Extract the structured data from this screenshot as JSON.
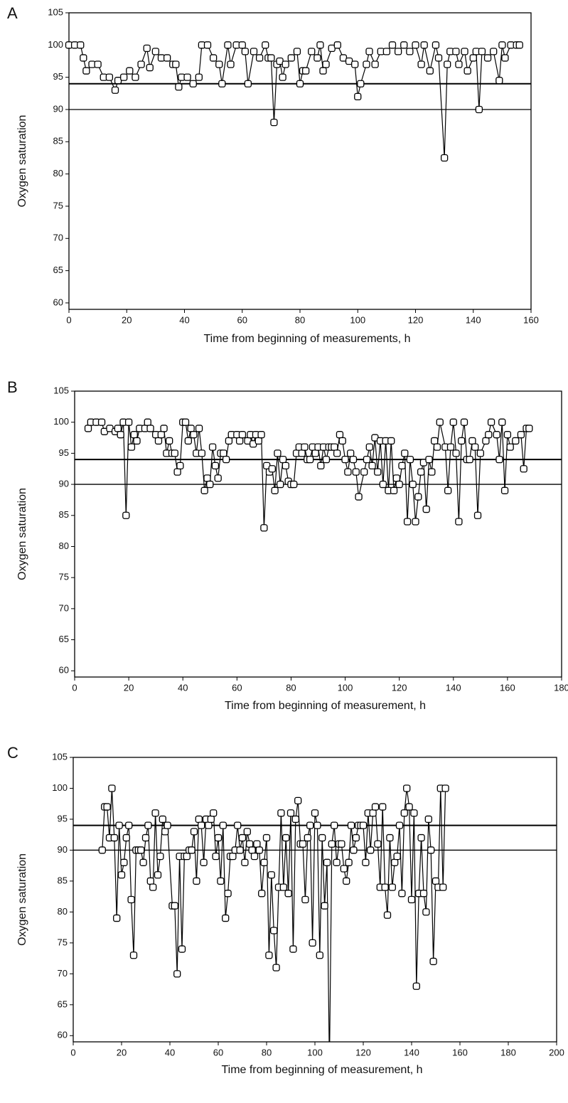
{
  "chart_data": [
    {
      "type": "line",
      "panel_label": "A",
      "xlabel": "Time from beginning of measurements, h",
      "ylabel": "Oxygen saturation",
      "xlim": [
        0,
        160
      ],
      "ylim": [
        59,
        105
      ],
      "xticks": [
        0,
        20,
        40,
        60,
        80,
        100,
        120,
        140,
        160
      ],
      "yticks": [
        60,
        65,
        70,
        75,
        80,
        85,
        90,
        95,
        100,
        105
      ],
      "reference_lines": [
        94,
        90
      ],
      "color": "#000000",
      "x": [
        0,
        2,
        4,
        5,
        6,
        8,
        10,
        12,
        14,
        16,
        17,
        19,
        21,
        23,
        25,
        27,
        28,
        30,
        32,
        34,
        36,
        37,
        38,
        39,
        41,
        43,
        45,
        46,
        48,
        50,
        52,
        53,
        55,
        56,
        58,
        60,
        61,
        62,
        64,
        66,
        68,
        69,
        70,
        71,
        72,
        73,
        74,
        75,
        77,
        79,
        80,
        81,
        82,
        84,
        86,
        87,
        88,
        89,
        91,
        93,
        95,
        97,
        99,
        100,
        101,
        103,
        104,
        106,
        108,
        110,
        112,
        114,
        116,
        118,
        120,
        122,
        123,
        125,
        127,
        128,
        130,
        131,
        132,
        134,
        135,
        137,
        138,
        140,
        141,
        142,
        143,
        145,
        147,
        149,
        150,
        151,
        153,
        155,
        156
      ],
      "values": [
        100,
        100,
        100,
        98,
        96,
        97,
        97,
        95,
        95,
        93,
        94.5,
        95,
        96,
        95,
        97,
        99.5,
        96.5,
        99,
        98,
        98,
        97,
        97,
        93.5,
        95,
        95,
        94,
        95,
        100,
        100,
        98,
        97,
        94,
        100,
        97,
        100,
        100,
        99,
        94,
        99,
        98,
        100,
        98,
        98,
        88,
        97,
        97.5,
        95,
        97,
        98,
        99,
        94,
        96,
        96,
        99,
        98,
        100,
        96,
        97,
        99.5,
        100,
        98,
        97.5,
        97,
        92,
        94,
        97,
        99,
        97,
        99,
        99,
        100,
        99,
        100,
        99,
        100,
        97,
        100,
        96,
        100,
        98,
        82.5,
        97,
        99,
        99,
        97,
        99,
        96,
        98,
        99,
        90,
        99,
        98,
        99,
        94.5,
        100,
        98,
        100,
        100,
        100
      ]
    },
    {
      "type": "line",
      "panel_label": "B",
      "xlabel": "Time from beginning of measurement, h",
      "ylabel": "Oxygen saturation",
      "xlim": [
        0,
        180
      ],
      "ylim": [
        59,
        105
      ],
      "xticks": [
        0,
        20,
        40,
        60,
        80,
        100,
        120,
        140,
        160,
        180
      ],
      "yticks": [
        60,
        65,
        70,
        75,
        80,
        85,
        90,
        95,
        100,
        105
      ],
      "reference_lines": [
        94,
        90
      ],
      "color": "#000000",
      "x": [
        5,
        6,
        8,
        10,
        11,
        13,
        15,
        16,
        17,
        18,
        19,
        20,
        21,
        22,
        23,
        24,
        26,
        27,
        28,
        30,
        31,
        32,
        33,
        34,
        35,
        36,
        37,
        38,
        39,
        40,
        41,
        42,
        43,
        44,
        45,
        46,
        47,
        48,
        49,
        50,
        51,
        52,
        53,
        54,
        55,
        56,
        57,
        58,
        60,
        61,
        62,
        64,
        65,
        66,
        67,
        68,
        69,
        70,
        71,
        72,
        73,
        74,
        75,
        76,
        77,
        78,
        79,
        80,
        81,
        82,
        83,
        84,
        85,
        86,
        87,
        88,
        89,
        90,
        91,
        92,
        93,
        94,
        95,
        96,
        97,
        98,
        99,
        100,
        101,
        102,
        103,
        104,
        105,
        107,
        108,
        109,
        110,
        111,
        112,
        113,
        114,
        115,
        116,
        117,
        118,
        119,
        120,
        121,
        122,
        123,
        124,
        125,
        126,
        127,
        128,
        129,
        130,
        131,
        132,
        133,
        134,
        135,
        137,
        138,
        139,
        140,
        141,
        142,
        143,
        144,
        145,
        146,
        147,
        148,
        149,
        150,
        152,
        153,
        154,
        156,
        157,
        158,
        159,
        160,
        161,
        163,
        165,
        166,
        167,
        168
      ],
      "values": [
        99,
        100,
        100,
        100,
        98.5,
        99,
        98.5,
        99,
        98,
        100,
        85,
        100,
        96,
        98,
        97,
        99,
        99,
        100,
        99,
        98,
        97,
        98,
        99,
        95,
        97,
        95,
        95,
        92,
        93,
        100,
        100,
        97,
        99,
        98,
        95,
        99,
        95,
        89,
        91,
        90,
        96,
        93,
        91,
        95,
        95,
        94,
        97,
        98,
        98,
        97,
        98,
        97,
        98,
        96.5,
        98,
        97,
        98,
        83,
        93,
        92,
        92.5,
        89,
        95,
        90,
        94,
        93,
        90.5,
        90,
        90,
        95,
        96,
        95,
        96,
        94,
        94,
        96,
        95,
        96,
        93,
        96,
        94,
        96,
        96,
        96,
        95,
        98,
        97,
        94,
        92,
        95,
        94,
        92,
        88,
        92,
        94,
        96,
        93,
        97.5,
        92,
        97,
        90,
        97,
        89,
        97,
        89,
        91,
        90,
        93,
        95,
        84,
        94,
        90,
        84,
        88,
        92,
        93.5,
        86,
        94,
        92,
        97,
        96,
        100,
        96,
        89,
        96,
        100,
        95,
        84,
        97,
        100,
        94,
        94,
        97,
        96,
        85,
        95,
        97,
        98,
        100,
        98,
        94,
        100,
        89,
        98,
        96,
        97,
        98,
        92.5,
        99,
        99
      ]
    },
    {
      "type": "line",
      "panel_label": "C",
      "xlabel": "Time from beginning of measurement, h",
      "ylabel": "Oxygen saturation",
      "xlim": [
        0,
        200
      ],
      "ylim": [
        59,
        105
      ],
      "xticks": [
        0,
        20,
        40,
        60,
        80,
        100,
        120,
        140,
        160,
        180,
        200
      ],
      "yticks": [
        60,
        65,
        70,
        75,
        80,
        85,
        90,
        95,
        100,
        105
      ],
      "reference_lines": [
        94,
        90
      ],
      "color": "#000000",
      "x": [
        12,
        13,
        14,
        15,
        16,
        17,
        18,
        19,
        20,
        21,
        22,
        23,
        24,
        25,
        26,
        27,
        28,
        29,
        30,
        31,
        32,
        33,
        34,
        35,
        36,
        37,
        38,
        39,
        41,
        42,
        43,
        44,
        45,
        46,
        47,
        48,
        49,
        50,
        51,
        52,
        53,
        54,
        55,
        56,
        57,
        58,
        59,
        60,
        61,
        62,
        63,
        64,
        65,
        66,
        67,
        68,
        69,
        70,
        71,
        72,
        73,
        74,
        75,
        76,
        77,
        78,
        79,
        80,
        81,
        82,
        83,
        84,
        85,
        86,
        87,
        88,
        89,
        90,
        91,
        92,
        93,
        94,
        95,
        96,
        97,
        98,
        99,
        100,
        101,
        102,
        103,
        104,
        105,
        106,
        107,
        108,
        109,
        110,
        111,
        112,
        113,
        114,
        115,
        116,
        117,
        118,
        119,
        120,
        121,
        122,
        123,
        124,
        125,
        126,
        127,
        128,
        129,
        130,
        131,
        132,
        133,
        134,
        135,
        136,
        137,
        138,
        139,
        140,
        141,
        142,
        143,
        144,
        145,
        146,
        147,
        148,
        149,
        150,
        151,
        152,
        153,
        154
      ],
      "values": [
        90,
        97,
        97,
        92,
        100,
        92,
        79,
        94,
        86,
        88,
        92,
        94,
        82,
        73,
        90,
        90,
        90,
        88,
        92,
        94,
        85,
        84,
        96,
        86,
        89,
        95,
        93,
        94,
        81,
        81,
        70,
        89,
        74,
        89,
        89,
        90,
        90,
        93,
        85,
        95,
        94,
        88,
        95,
        94,
        95,
        96,
        89,
        92,
        85,
        94,
        79,
        83,
        89,
        89,
        90,
        94,
        90,
        92,
        88,
        93,
        91,
        90,
        89,
        91,
        90,
        83,
        88,
        92,
        73,
        86,
        77,
        71,
        84,
        96,
        84,
        92,
        83,
        96,
        74,
        95,
        98,
        91,
        91,
        82,
        92,
        94,
        75,
        96,
        94,
        73,
        92,
        81,
        88,
        55,
        91,
        94,
        88,
        91,
        91,
        87,
        85,
        88,
        94,
        90,
        92,
        94,
        94,
        94,
        88,
        96,
        90,
        96,
        97,
        91,
        84,
        97,
        84,
        79.5,
        92,
        84,
        88,
        89,
        94,
        83,
        96,
        100,
        97,
        82,
        96,
        68,
        83,
        92,
        83,
        80,
        95,
        90,
        72,
        85,
        84,
        100,
        84,
        100
      ]
    }
  ]
}
